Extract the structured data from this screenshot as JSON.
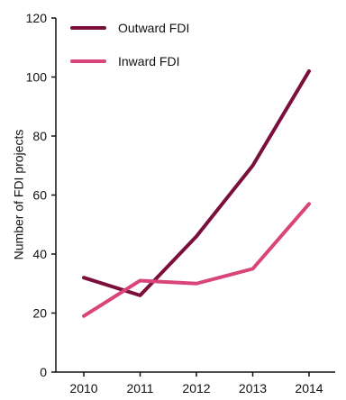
{
  "chart_data": {
    "type": "line",
    "title": "",
    "xlabel": "",
    "ylabel": "Number of FDI projects",
    "x": [
      "2010",
      "2011",
      "2012",
      "2013",
      "2014"
    ],
    "ylim": [
      0,
      120
    ],
    "yticks": [
      0,
      20,
      40,
      60,
      80,
      100,
      120
    ],
    "grid": false,
    "legend_position": "top-left",
    "series": [
      {
        "name": "Outward FDI",
        "color": "#7a0f3b",
        "values": [
          32,
          26,
          46,
          70,
          102
        ]
      },
      {
        "name": "Inward FDI",
        "color": "#d9457a",
        "values": [
          19,
          31,
          30,
          35,
          57
        ]
      }
    ]
  }
}
